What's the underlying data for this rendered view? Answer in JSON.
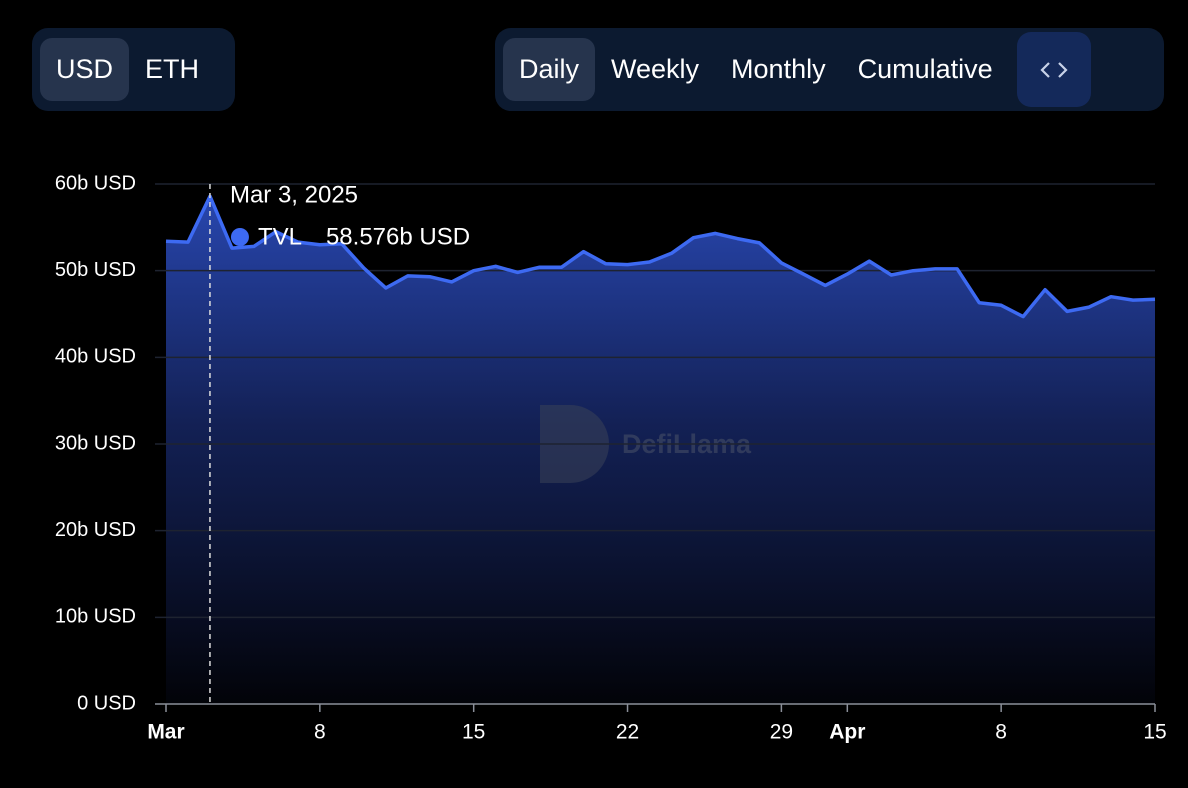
{
  "controls": {
    "currency": [
      {
        "label": "USD",
        "active": true
      },
      {
        "label": "ETH",
        "active": false
      }
    ],
    "period": [
      {
        "label": "Daily",
        "active": true
      },
      {
        "label": "Weekly",
        "active": false
      },
      {
        "label": "Monthly",
        "active": false
      },
      {
        "label": "Cumulative",
        "active": false
      }
    ]
  },
  "chart_data": {
    "type": "area",
    "watermark": "DefiLlama",
    "x": [
      "2025-03-01",
      "2025-03-02",
      "2025-03-03",
      "2025-03-04",
      "2025-03-05",
      "2025-03-06",
      "2025-03-07",
      "2025-03-08",
      "2025-03-09",
      "2025-03-10",
      "2025-03-11",
      "2025-03-12",
      "2025-03-13",
      "2025-03-14",
      "2025-03-15",
      "2025-03-16",
      "2025-03-17",
      "2025-03-18",
      "2025-03-19",
      "2025-03-20",
      "2025-03-21",
      "2025-03-22",
      "2025-03-23",
      "2025-03-24",
      "2025-03-25",
      "2025-03-26",
      "2025-03-27",
      "2025-03-28",
      "2025-03-29",
      "2025-03-30",
      "2025-03-31",
      "2025-04-01",
      "2025-04-02",
      "2025-04-03",
      "2025-04-04",
      "2025-04-05",
      "2025-04-06",
      "2025-04-07",
      "2025-04-08",
      "2025-04-09",
      "2025-04-10",
      "2025-04-11",
      "2025-04-12",
      "2025-04-13",
      "2025-04-14",
      "2025-04-15"
    ],
    "series": [
      {
        "name": "TVL",
        "color": "#3d6af2",
        "values": [
          53.4,
          53.3,
          58.576,
          52.6,
          52.8,
          54.5,
          53.3,
          53.0,
          53.1,
          50.3,
          48.0,
          49.4,
          49.3,
          48.7,
          50.0,
          50.5,
          49.8,
          50.4,
          50.4,
          52.2,
          50.8,
          50.7,
          51.0,
          52.0,
          53.8,
          54.3,
          53.7,
          53.2,
          50.9,
          49.6,
          48.3,
          49.6,
          51.1,
          49.5,
          50.0,
          50.2,
          50.2,
          46.3,
          46.0,
          44.7,
          47.8,
          45.3,
          45.8,
          47.0,
          46.6,
          46.7
        ]
      }
    ],
    "xlim": [
      "2025-03-01",
      "2025-04-15"
    ],
    "xticks": [
      {
        "value": "2025-03-01",
        "label": "Mar"
      },
      {
        "value": "2025-03-08",
        "label": "8"
      },
      {
        "value": "2025-03-15",
        "label": "15"
      },
      {
        "value": "2025-03-22",
        "label": "22"
      },
      {
        "value": "2025-03-29",
        "label": "29"
      },
      {
        "value": "2025-04-01",
        "label": "Apr"
      },
      {
        "value": "2025-04-08",
        "label": "8"
      },
      {
        "value": "2025-04-15",
        "label": "15"
      }
    ],
    "ylim": [
      0,
      60
    ],
    "yticks": [
      {
        "value": 0,
        "label": "0 USD"
      },
      {
        "value": 10,
        "label": "10b USD"
      },
      {
        "value": 20,
        "label": "20b USD"
      },
      {
        "value": 30,
        "label": "30b USD"
      },
      {
        "value": 40,
        "label": "40b USD"
      },
      {
        "value": 50,
        "label": "50b USD"
      },
      {
        "value": 60,
        "label": "60b USD"
      }
    ],
    "grid": true,
    "tooltip": {
      "x": "2025-03-03",
      "title": "Mar 3, 2025",
      "value_label": "58.576b USD"
    }
  }
}
